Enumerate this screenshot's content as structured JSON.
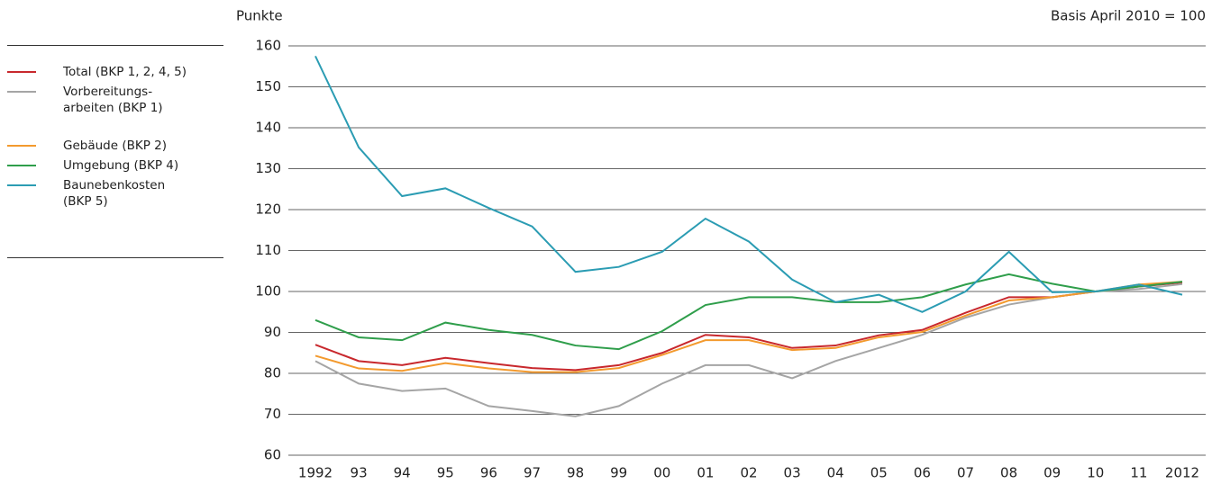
{
  "chart_data": {
    "type": "line",
    "ylabel": "Punkte",
    "note": "Basis April 2010 = 100",
    "categories": [
      "1992",
      "93",
      "94",
      "95",
      "96",
      "97",
      "98",
      "99",
      "00",
      "01",
      "02",
      "03",
      "04",
      "05",
      "06",
      "07",
      "08",
      "09",
      "10",
      "11",
      "2012"
    ],
    "ylim": [
      60,
      160
    ],
    "yticks": [
      60,
      70,
      80,
      90,
      100,
      110,
      120,
      130,
      140,
      150,
      160
    ],
    "grid": true,
    "series": [
      {
        "name": "Total (BKP 1, 2, 4, 5)",
        "color": "#c8282d",
        "values": [
          87,
          83,
          82,
          83.8,
          82.5,
          81.3,
          80.8,
          82,
          85,
          89.4,
          88.8,
          86.2,
          86.8,
          89.3,
          90.6,
          94.8,
          98.6,
          98.6,
          100,
          101.2,
          102.2
        ]
      },
      {
        "name": "Vorbereitungs-\narbeiten (BKP 1)",
        "color": "#a5a5a5",
        "values": [
          83,
          77.5,
          75.7,
          76.3,
          72,
          70.8,
          69.5,
          72,
          77.5,
          82,
          82,
          78.8,
          83,
          86.2,
          89.4,
          93.6,
          96.8,
          98.6,
          100,
          100.6,
          101.8
        ]
      },
      {
        "name": "Gebäude (BKP 2)",
        "color": "#f39a2e",
        "values": [
          84.3,
          81.2,
          80.6,
          82.5,
          81.2,
          80.3,
          80.3,
          81.3,
          84.5,
          88.1,
          88.1,
          85.7,
          86.2,
          88.8,
          90.1,
          94.1,
          97.8,
          98.6,
          100,
          101.7,
          102.4
        ]
      },
      {
        "name": "Umgebung (BKP 4)",
        "color": "#2f9e4b",
        "values": [
          93,
          88.8,
          88.1,
          92.4,
          90.6,
          89.4,
          86.8,
          85.9,
          90.3,
          96.7,
          98.6,
          98.6,
          97.4,
          97.4,
          98.6,
          101.7,
          104.2,
          101.9,
          100,
          101.2,
          102.4
        ]
      },
      {
        "name": "Baunebenkosten\n(BKP 5)",
        "color": "#2b9cb3",
        "values": [
          157.5,
          135.2,
          123.3,
          125.2,
          120.4,
          115.9,
          104.8,
          106,
          109.7,
          117.8,
          112.2,
          102.9,
          97.4,
          99.2,
          95,
          100,
          109.7,
          99.8,
          100,
          101.7,
          99.2
        ]
      }
    ]
  }
}
